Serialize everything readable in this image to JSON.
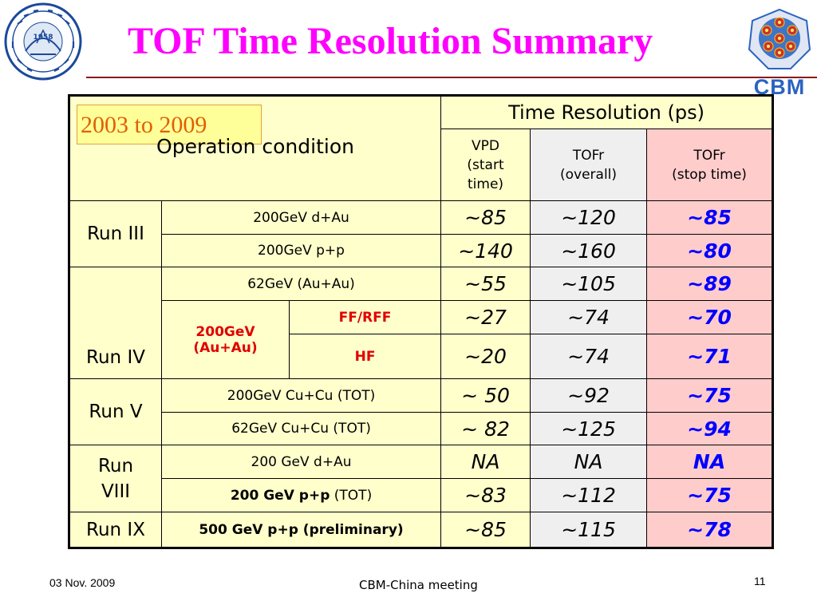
{
  "slide": {
    "title": "TOF Time Resolution Summary",
    "year_range": "2003 to 2009",
    "operation_condition": "Operation condition",
    "footer_date": "03 Nov. 2009",
    "footer_center": "CBM-China meeting",
    "page_number": "11",
    "logo_left_year": "1958",
    "logo_right_text": "CBM"
  },
  "colors": {
    "title": "#ff00ff",
    "stop_time_values": "#0000ff",
    "highlight_conditions": "#e00000",
    "cream_cell": "#ffffcc",
    "grey_cell": "#efefef",
    "pink_cell": "#ffcccc"
  },
  "table": {
    "header": {
      "group": "Time Resolution (ps)",
      "vpd_line1": "VPD",
      "vpd_line2": "(start",
      "vpd_line3": "time)",
      "tofr_overall_line1": "TOFr",
      "tofr_overall_line2": "(overall)",
      "tofr_stop_line1": "TOFr",
      "tofr_stop_line2": "(stop time)"
    },
    "runs": {
      "run3": "Run III",
      "run4": "Run IV",
      "run5": "Run V",
      "run8_line1": "Run",
      "run8_line2": "VIII",
      "run9": "Run IX"
    },
    "rows": [
      {
        "condition": "200GeV d+Au",
        "vpd": "~85",
        "tofr": "~120",
        "stop": "~85"
      },
      {
        "condition": "200GeV p+p",
        "vpd": "~140",
        "tofr": "~160",
        "stop": "~80"
      },
      {
        "condition": "62GeV (Au+Au)",
        "vpd": "~55",
        "tofr": "~105",
        "stop": "~89"
      },
      {
        "condition_group_line1": "200GeV",
        "condition_group_line2": "(Au+Au)",
        "condition": "FF/RFF",
        "vpd": "~27",
        "tofr": "~74",
        "stop": "~70"
      },
      {
        "condition": "HF",
        "vpd": "~20",
        "tofr": "~74",
        "stop": "~71"
      },
      {
        "condition": "200GeV Cu+Cu (TOT)",
        "vpd": "~ 50",
        "tofr": "~92",
        "stop": "~75"
      },
      {
        "condition": "62GeV Cu+Cu (TOT)",
        "vpd": "~ 82",
        "tofr": "~125",
        "stop": "~94"
      },
      {
        "condition": "200 GeV d+Au",
        "vpd": "NA",
        "tofr": "NA",
        "stop": "NA"
      },
      {
        "condition_bold": "200 GeV p+p",
        "condition_suffix": "(TOT)",
        "vpd": "~83",
        "tofr": "~112",
        "stop": "~75"
      },
      {
        "condition": "500 GeV p+p (preliminary)",
        "vpd": "~85",
        "tofr": "~115",
        "stop": "~78"
      }
    ]
  }
}
